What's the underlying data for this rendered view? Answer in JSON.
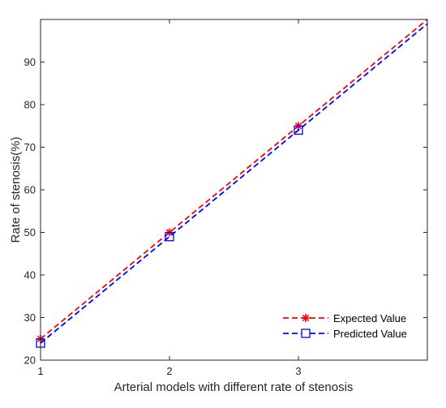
{
  "chart_data": {
    "type": "line",
    "title": "",
    "xlabel": "Arterial models with different rate of stenosis",
    "ylabel": "Rate of stenosis(%)",
    "xlim": [
      1,
      4
    ],
    "ylim": [
      20,
      100
    ],
    "x_ticks": [
      1,
      2,
      3
    ],
    "y_ticks": [
      20,
      30,
      40,
      50,
      60,
      70,
      80,
      90
    ],
    "grid": false,
    "legend_position": "bottom-right",
    "series": [
      {
        "name": "Expected Value",
        "color": "#ff0000",
        "marker": "asterisk",
        "line_style": "dashed",
        "x": [
          1,
          2,
          3,
          4
        ],
        "y": [
          25,
          50,
          75,
          100
        ]
      },
      {
        "name": "Predicted Value",
        "color": "#0000ff",
        "marker": "square",
        "line_style": "dashed",
        "x": [
          1,
          2,
          3,
          4
        ],
        "y": [
          24,
          49,
          74,
          99
        ]
      }
    ]
  }
}
